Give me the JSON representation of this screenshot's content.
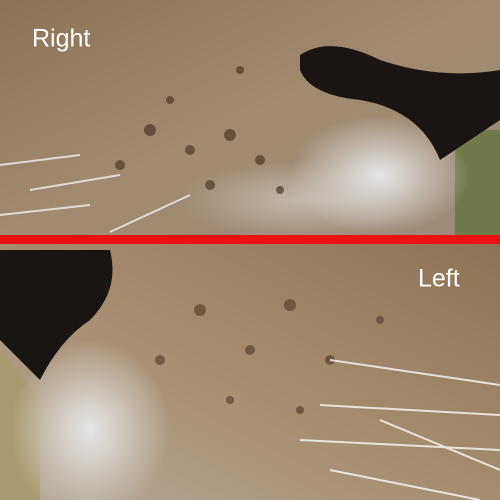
{
  "labels": {
    "top": "Right",
    "bottom": "Left"
  }
}
